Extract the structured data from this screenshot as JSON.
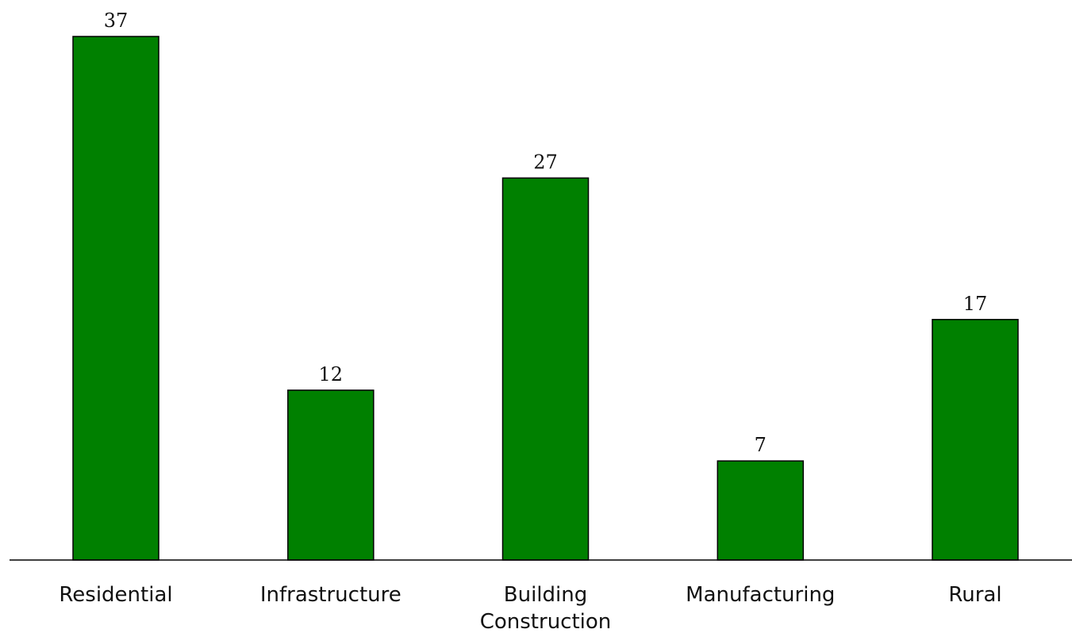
{
  "chart_data": {
    "type": "bar",
    "categories": [
      "Residential",
      "Infrastructure",
      "Building Construction",
      "Manufacturing",
      "Rural"
    ],
    "category_lines": [
      [
        "Residential"
      ],
      [
        "Infrastructure"
      ],
      [
        "Building",
        "Construction"
      ],
      [
        "Manufacturing"
      ],
      [
        "Rural"
      ]
    ],
    "values": [
      37,
      12,
      27,
      7,
      17
    ],
    "value_labels": [
      "37",
      "12",
      "27",
      "7",
      "17"
    ],
    "title": "",
    "xlabel": "",
    "ylabel": "",
    "ylim": [
      0,
      37
    ],
    "grid": false,
    "bar_color": "#008000",
    "edge_color": "#000000"
  }
}
